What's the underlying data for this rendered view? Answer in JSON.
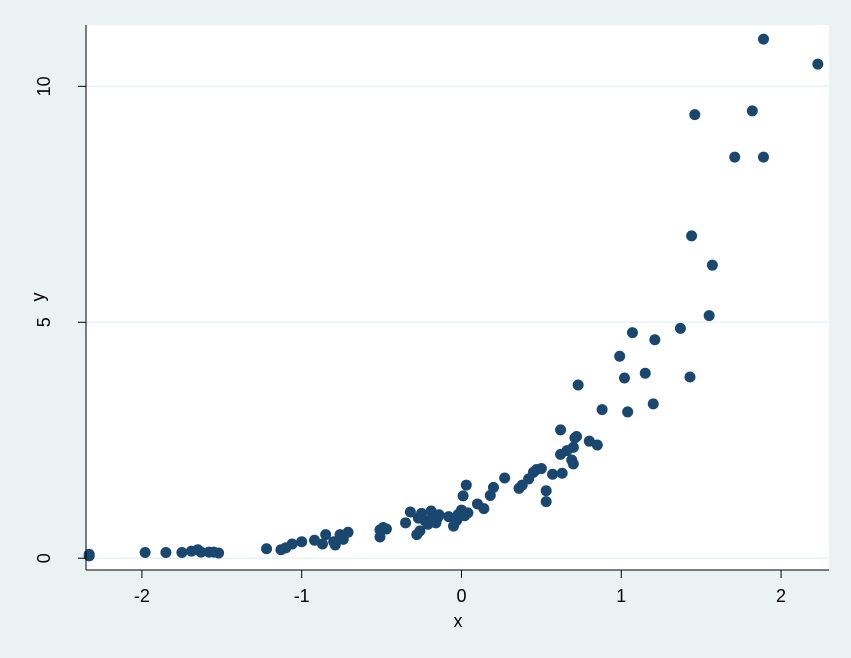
{
  "chart_data": {
    "type": "scatter",
    "title": "",
    "xlabel": "x",
    "ylabel": "y",
    "xlim": [
      -2.35,
      2.3
    ],
    "ylim": [
      -0.25,
      11.3
    ],
    "xticks": [
      -2,
      -1,
      0,
      1,
      2
    ],
    "xtick_labels": [
      "-2",
      "-1",
      "0",
      "1",
      "2"
    ],
    "yticks": [
      0,
      5,
      10
    ],
    "ytick_labels": [
      "0",
      "5",
      "10"
    ],
    "grid": "horizontal",
    "legend": "none",
    "colors": {
      "outer_background": "#eaf2f3",
      "plot_background": "#ffffff",
      "marker": "#1a476f",
      "axis": "#000000",
      "grid": "#eaf2f3"
    },
    "points": [
      {
        "x": -2.33,
        "y": 0.05
      },
      {
        "x": -2.33,
        "y": 0.08
      },
      {
        "x": -1.98,
        "y": 0.12
      },
      {
        "x": -1.85,
        "y": 0.12
      },
      {
        "x": -1.75,
        "y": 0.12
      },
      {
        "x": -1.69,
        "y": 0.15
      },
      {
        "x": -1.65,
        "y": 0.18
      },
      {
        "x": -1.63,
        "y": 0.13
      },
      {
        "x": -1.58,
        "y": 0.13
      },
      {
        "x": -1.55,
        "y": 0.13
      },
      {
        "x": -1.52,
        "y": 0.11
      },
      {
        "x": -1.22,
        "y": 0.2
      },
      {
        "x": -1.13,
        "y": 0.18
      },
      {
        "x": -1.1,
        "y": 0.22
      },
      {
        "x": -1.06,
        "y": 0.3
      },
      {
        "x": -1.0,
        "y": 0.35
      },
      {
        "x": -0.92,
        "y": 0.38
      },
      {
        "x": -0.87,
        "y": 0.3
      },
      {
        "x": -0.85,
        "y": 0.5
      },
      {
        "x": -0.8,
        "y": 0.35
      },
      {
        "x": -0.79,
        "y": 0.28
      },
      {
        "x": -0.76,
        "y": 0.5
      },
      {
        "x": -0.74,
        "y": 0.4
      },
      {
        "x": -0.71,
        "y": 0.55
      },
      {
        "x": -0.51,
        "y": 0.45
      },
      {
        "x": -0.51,
        "y": 0.6
      },
      {
        "x": -0.49,
        "y": 0.65
      },
      {
        "x": -0.47,
        "y": 0.62
      },
      {
        "x": -0.35,
        "y": 0.75
      },
      {
        "x": -0.32,
        "y": 0.98
      },
      {
        "x": -0.28,
        "y": 0.5
      },
      {
        "x": -0.27,
        "y": 0.85
      },
      {
        "x": -0.26,
        "y": 0.58
      },
      {
        "x": -0.25,
        "y": 0.95
      },
      {
        "x": -0.23,
        "y": 0.8
      },
      {
        "x": -0.21,
        "y": 0.72
      },
      {
        "x": -0.19,
        "y": 1.0
      },
      {
        "x": -0.18,
        "y": 0.9
      },
      {
        "x": -0.16,
        "y": 0.75
      },
      {
        "x": -0.15,
        "y": 0.85
      },
      {
        "x": -0.14,
        "y": 0.92
      },
      {
        "x": -0.08,
        "y": 0.88
      },
      {
        "x": -0.05,
        "y": 0.68
      },
      {
        "x": -0.03,
        "y": 0.8
      },
      {
        "x": -0.02,
        "y": 0.93
      },
      {
        "x": 0.0,
        "y": 1.02
      },
      {
        "x": 0.01,
        "y": 1.32
      },
      {
        "x": 0.02,
        "y": 0.9
      },
      {
        "x": 0.03,
        "y": 1.55
      },
      {
        "x": 0.04,
        "y": 0.96
      },
      {
        "x": 0.1,
        "y": 1.15
      },
      {
        "x": 0.14,
        "y": 1.05
      },
      {
        "x": 0.18,
        "y": 1.33
      },
      {
        "x": 0.2,
        "y": 1.5
      },
      {
        "x": 0.27,
        "y": 1.7
      },
      {
        "x": 0.36,
        "y": 1.48
      },
      {
        "x": 0.38,
        "y": 1.55
      },
      {
        "x": 0.42,
        "y": 1.68
      },
      {
        "x": 0.45,
        "y": 1.82
      },
      {
        "x": 0.47,
        "y": 1.88
      },
      {
        "x": 0.5,
        "y": 1.9
      },
      {
        "x": 0.53,
        "y": 1.43
      },
      {
        "x": 0.53,
        "y": 1.2
      },
      {
        "x": 0.57,
        "y": 1.78
      },
      {
        "x": 0.62,
        "y": 2.2
      },
      {
        "x": 0.62,
        "y": 2.72
      },
      {
        "x": 0.63,
        "y": 1.8
      },
      {
        "x": 0.66,
        "y": 2.28
      },
      {
        "x": 0.69,
        "y": 2.08
      },
      {
        "x": 0.7,
        "y": 2.35
      },
      {
        "x": 0.7,
        "y": 2.0
      },
      {
        "x": 0.71,
        "y": 2.55
      },
      {
        "x": 0.72,
        "y": 2.58
      },
      {
        "x": 0.73,
        "y": 3.67
      },
      {
        "x": 0.8,
        "y": 2.48
      },
      {
        "x": 0.85,
        "y": 2.4
      },
      {
        "x": 0.88,
        "y": 3.15
      },
      {
        "x": 0.99,
        "y": 4.28
      },
      {
        "x": 1.02,
        "y": 3.82
      },
      {
        "x": 1.04,
        "y": 3.1
      },
      {
        "x": 1.07,
        "y": 4.78
      },
      {
        "x": 1.15,
        "y": 3.92
      },
      {
        "x": 1.2,
        "y": 3.27
      },
      {
        "x": 1.21,
        "y": 4.63
      },
      {
        "x": 1.37,
        "y": 4.87
      },
      {
        "x": 1.43,
        "y": 3.84
      },
      {
        "x": 1.44,
        "y": 6.83
      },
      {
        "x": 1.46,
        "y": 9.4
      },
      {
        "x": 1.55,
        "y": 5.14
      },
      {
        "x": 1.57,
        "y": 6.21
      },
      {
        "x": 1.71,
        "y": 8.5
      },
      {
        "x": 1.82,
        "y": 9.48
      },
      {
        "x": 1.89,
        "y": 8.5
      },
      {
        "x": 1.89,
        "y": 11.0
      },
      {
        "x": 2.23,
        "y": 10.47
      }
    ]
  }
}
